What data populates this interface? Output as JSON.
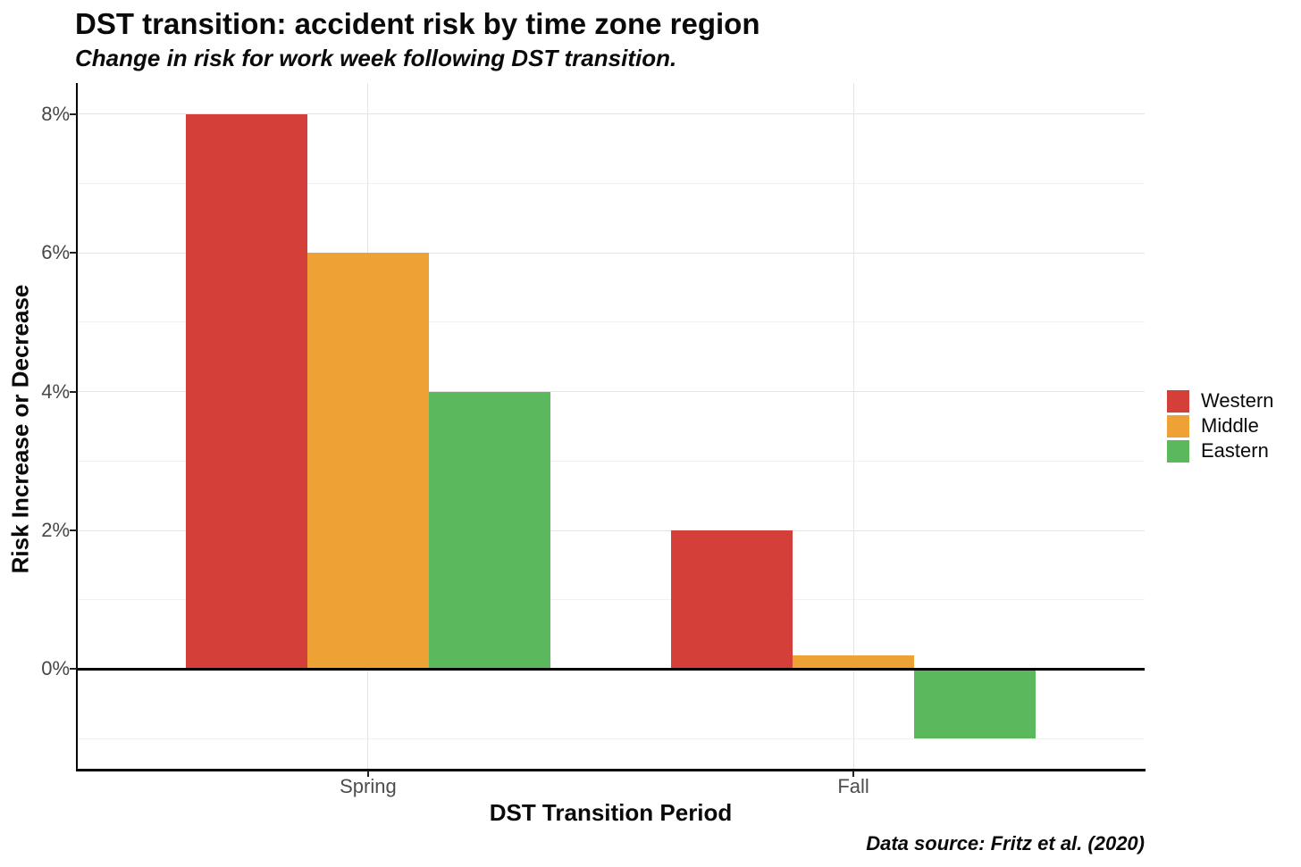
{
  "chart_data": {
    "type": "bar",
    "title": "DST transition: accident risk by time zone region",
    "subtitle": "Change in risk for work week following DST transition.",
    "xlabel": "DST Transition Period",
    "ylabel": "Risk Increase or Decrease",
    "caption": "Data source: Fritz et al. (2020)",
    "categories": [
      "Spring",
      "Fall"
    ],
    "series": [
      {
        "name": "Western",
        "color": "#D43F3A",
        "values": [
          8,
          2
        ]
      },
      {
        "name": "Middle",
        "color": "#EEA236",
        "values": [
          6,
          0.2
        ]
      },
      {
        "name": "Eastern",
        "color": "#5CB85C",
        "values": [
          4,
          -1
        ]
      }
    ],
    "value_unit": "%",
    "y_axis": {
      "min": -1.45,
      "max": 8.45,
      "major_ticks": [
        {
          "value": 0,
          "label": "0%"
        },
        {
          "value": 2,
          "label": "2%"
        },
        {
          "value": 4,
          "label": "4%"
        },
        {
          "value": 6,
          "label": "6%"
        },
        {
          "value": 8,
          "label": "8%"
        }
      ],
      "minor_gridlines": [
        -1,
        1,
        3,
        5,
        7
      ]
    },
    "legend_position": "right",
    "grid": true,
    "colors": {
      "grid_major": "#e4e4e4",
      "grid_minor": "#f1f1f1",
      "axis_line": "#000000",
      "tick_text": "#4d4d4d"
    }
  }
}
